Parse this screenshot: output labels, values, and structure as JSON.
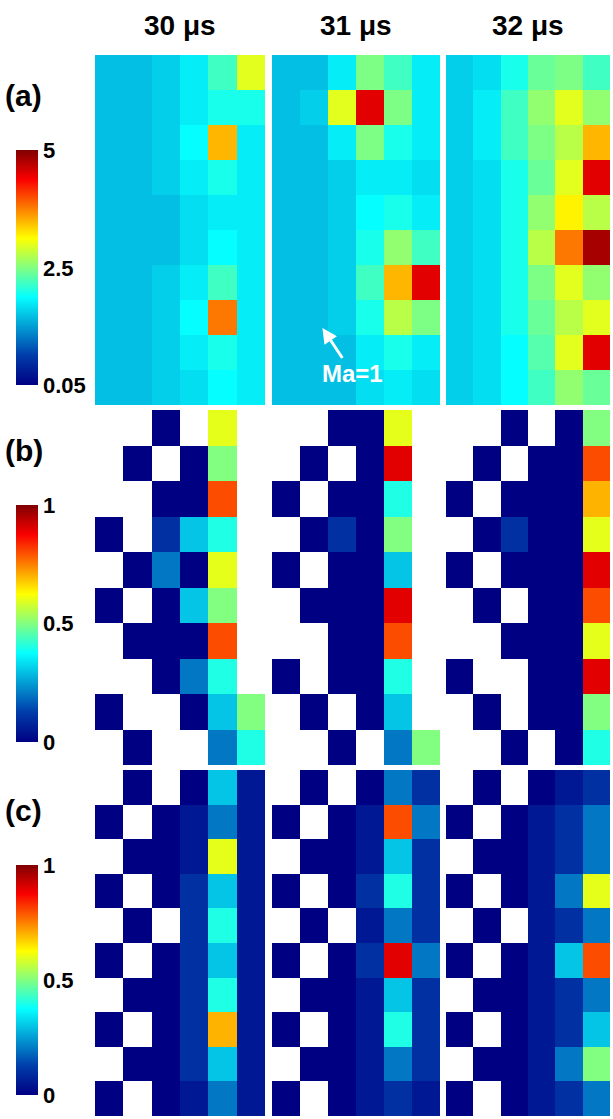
{
  "chart_data": {
    "type": "heatmap",
    "tick_labels": false,
    "columns": [
      "30 μs",
      "31 μs",
      "32 μs"
    ],
    "rows": [
      {
        "label": "(a)",
        "colorbar": {
          "range": [
            0.05,
            5
          ],
          "ticks": [
            0.05,
            2.5,
            5
          ]
        },
        "cells": [
          [
            [
              1.5,
              1.5,
              1.6,
              1.8,
              2.2,
              3.0
            ],
            [
              1.5,
              1.5,
              1.6,
              1.8,
              2.0,
              2.0
            ],
            [
              1.5,
              1.5,
              1.6,
              1.9,
              3.5,
              1.8
            ],
            [
              1.5,
              1.5,
              1.6,
              1.8,
              2.0,
              1.8
            ],
            [
              1.5,
              1.5,
              1.5,
              1.7,
              1.8,
              1.8
            ],
            [
              1.5,
              1.5,
              1.5,
              1.7,
              1.9,
              1.8
            ],
            [
              1.5,
              1.5,
              1.6,
              1.8,
              2.2,
              1.8
            ],
            [
              1.5,
              1.5,
              1.6,
              1.9,
              3.8,
              1.8
            ],
            [
              1.5,
              1.5,
              1.6,
              1.8,
              2.0,
              1.8
            ],
            [
              1.5,
              1.5,
              1.6,
              1.7,
              1.9,
              1.8
            ]
          ],
          [
            [
              1.5,
              1.5,
              1.8,
              2.5,
              2.2,
              1.8
            ],
            [
              1.5,
              1.6,
              3.0,
              4.5,
              2.5,
              1.8
            ],
            [
              1.5,
              1.5,
              1.8,
              2.5,
              2.0,
              1.8
            ],
            [
              1.5,
              1.5,
              1.6,
              1.8,
              1.8,
              1.7
            ],
            [
              1.5,
              1.5,
              1.6,
              1.9,
              2.0,
              1.8
            ],
            [
              1.5,
              1.5,
              1.6,
              2.0,
              2.6,
              2.2
            ],
            [
              1.5,
              1.5,
              1.6,
              2.2,
              3.5,
              4.5
            ],
            [
              1.5,
              1.5,
              1.6,
              2.0,
              2.8,
              2.5
            ],
            [
              1.5,
              1.5,
              1.5,
              1.8,
              2.0,
              1.8
            ],
            [
              1.5,
              1.5,
              1.5,
              1.7,
              1.8,
              1.7
            ]
          ],
          [
            [
              1.6,
              1.7,
              2.0,
              2.4,
              2.5,
              2.2
            ],
            [
              1.6,
              1.8,
              2.2,
              2.6,
              3.0,
              2.6
            ],
            [
              1.6,
              1.8,
              2.2,
              2.5,
              2.8,
              3.5
            ],
            [
              1.6,
              1.7,
              2.0,
              2.4,
              3.0,
              4.5
            ],
            [
              1.6,
              1.7,
              2.0,
              2.6,
              3.2,
              2.8
            ],
            [
              1.6,
              1.7,
              2.0,
              2.8,
              3.8,
              4.8
            ],
            [
              1.6,
              1.7,
              2.0,
              2.5,
              3.0,
              2.6
            ],
            [
              1.6,
              1.7,
              2.0,
              2.4,
              2.8,
              3.0
            ],
            [
              1.6,
              1.7,
              1.9,
              2.3,
              3.0,
              4.5
            ],
            [
              1.6,
              1.7,
              1.9,
              2.2,
              2.6,
              2.4
            ]
          ]
        ]
      },
      {
        "label": "(b)",
        "colorbar": {
          "range": [
            0,
            1
          ],
          "ticks": [
            0,
            0.5,
            1
          ]
        },
        "cells": [
          [
            [
              null,
              null,
              0.0,
              null,
              0.6,
              null
            ],
            [
              null,
              0.0,
              null,
              0.0,
              0.5,
              null
            ],
            [
              null,
              null,
              0.0,
              0.0,
              0.8,
              null
            ],
            [
              0.0,
              null,
              0.1,
              0.3,
              0.4,
              null
            ],
            [
              null,
              0.0,
              0.2,
              0.0,
              0.6,
              null
            ],
            [
              0.0,
              null,
              0.0,
              0.3,
              0.5,
              null
            ],
            [
              null,
              0.0,
              0.0,
              0.0,
              0.8,
              null
            ],
            [
              null,
              null,
              0.0,
              0.2,
              0.4,
              null
            ],
            [
              0.0,
              null,
              null,
              0.0,
              0.3,
              0.5
            ],
            [
              null,
              0.0,
              null,
              null,
              0.2,
              0.4
            ]
          ],
          [
            [
              null,
              null,
              0.0,
              0.0,
              0.6,
              null
            ],
            [
              null,
              0.0,
              null,
              0.0,
              0.9,
              null
            ],
            [
              0.0,
              null,
              0.0,
              0.0,
              0.4,
              null
            ],
            [
              null,
              0.0,
              0.1,
              0.0,
              0.5,
              null
            ],
            [
              0.0,
              null,
              0.0,
              0.0,
              0.3,
              null
            ],
            [
              null,
              0.0,
              0.0,
              0.0,
              0.9,
              null
            ],
            [
              null,
              null,
              0.0,
              0.0,
              0.8,
              null
            ],
            [
              0.0,
              null,
              0.0,
              0.0,
              0.4,
              null
            ],
            [
              null,
              0.0,
              null,
              0.0,
              0.3,
              null
            ],
            [
              null,
              null,
              0.0,
              null,
              0.2,
              0.5
            ]
          ],
          [
            [
              null,
              null,
              0.0,
              null,
              0.0,
              0.5
            ],
            [
              null,
              0.0,
              null,
              0.0,
              0.0,
              0.8
            ],
            [
              0.0,
              null,
              0.0,
              0.0,
              0.0,
              0.7
            ],
            [
              null,
              0.0,
              0.1,
              0.0,
              0.0,
              0.6
            ],
            [
              0.0,
              null,
              0.0,
              0.0,
              0.0,
              0.9
            ],
            [
              null,
              0.0,
              null,
              0.0,
              0.0,
              0.8
            ],
            [
              null,
              null,
              0.0,
              0.0,
              0.0,
              0.6
            ],
            [
              0.0,
              null,
              null,
              0.0,
              0.0,
              0.9
            ],
            [
              null,
              0.0,
              null,
              0.0,
              0.0,
              0.5
            ],
            [
              null,
              null,
              0.0,
              null,
              0.0,
              0.4
            ]
          ]
        ]
      },
      {
        "label": "(c)",
        "colorbar": {
          "range": [
            0,
            1
          ],
          "ticks": [
            0,
            0.5,
            1
          ]
        },
        "cells": [
          [
            [
              null,
              0.0,
              null,
              0.0,
              0.3,
              0.05
            ],
            [
              0.0,
              null,
              0.0,
              0.05,
              0.2,
              0.05
            ],
            [
              null,
              0.0,
              0.0,
              0.05,
              0.6,
              0.05
            ],
            [
              0.0,
              null,
              0.0,
              0.1,
              0.3,
              0.05
            ],
            [
              null,
              0.0,
              null,
              0.1,
              0.4,
              0.05
            ],
            [
              0.0,
              null,
              0.0,
              0.1,
              0.3,
              0.05
            ],
            [
              null,
              0.0,
              0.0,
              0.1,
              0.4,
              0.05
            ],
            [
              0.0,
              null,
              0.0,
              0.1,
              0.7,
              0.05
            ],
            [
              null,
              0.0,
              0.0,
              0.1,
              0.3,
              0.05
            ],
            [
              0.0,
              null,
              0.0,
              0.05,
              0.2,
              0.05
            ]
          ],
          [
            [
              null,
              0.0,
              null,
              0.0,
              0.2,
              0.1
            ],
            [
              0.0,
              null,
              0.0,
              0.05,
              0.8,
              0.2
            ],
            [
              null,
              0.0,
              0.0,
              0.05,
              0.3,
              0.1
            ],
            [
              0.0,
              null,
              0.0,
              0.1,
              0.4,
              0.1
            ],
            [
              null,
              0.0,
              null,
              0.05,
              0.2,
              0.1
            ],
            [
              0.0,
              null,
              0.0,
              0.1,
              0.9,
              0.2
            ],
            [
              null,
              0.0,
              0.0,
              0.05,
              0.3,
              0.1
            ],
            [
              0.0,
              null,
              0.0,
              0.05,
              0.4,
              0.1
            ],
            [
              null,
              0.0,
              0.0,
              0.05,
              0.2,
              0.1
            ],
            [
              0.0,
              null,
              0.0,
              0.05,
              0.1,
              0.05
            ]
          ],
          [
            [
              null,
              0.0,
              null,
              0.0,
              0.05,
              0.1
            ],
            [
              0.0,
              null,
              0.0,
              0.05,
              0.1,
              0.2
            ],
            [
              null,
              0.0,
              0.0,
              0.05,
              0.1,
              0.2
            ],
            [
              0.0,
              null,
              0.0,
              0.05,
              0.2,
              0.6
            ],
            [
              null,
              0.0,
              null,
              0.05,
              0.1,
              0.2
            ],
            [
              0.0,
              null,
              0.0,
              0.05,
              0.3,
              0.8
            ],
            [
              null,
              0.0,
              0.0,
              0.05,
              0.1,
              0.2
            ],
            [
              0.0,
              null,
              0.0,
              0.05,
              0.1,
              0.3
            ],
            [
              null,
              0.0,
              0.0,
              0.05,
              0.2,
              0.5
            ],
            [
              0.0,
              null,
              0.0,
              0.05,
              0.1,
              0.2
            ]
          ]
        ]
      }
    ],
    "annotation": {
      "text": "Ma=1",
      "row": 0,
      "column": 1
    }
  }
}
